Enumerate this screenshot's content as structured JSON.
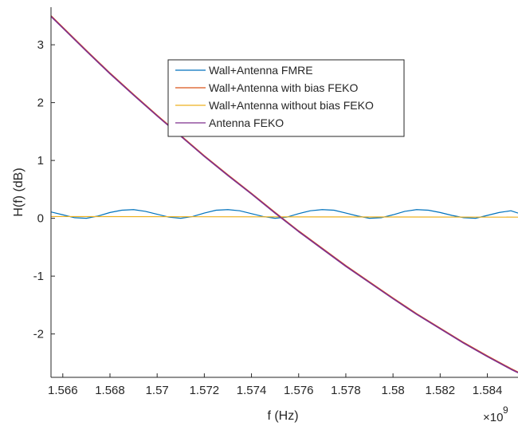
{
  "chart_data": {
    "type": "line",
    "xlabel": "f (Hz)",
    "ylabel": "H(f) (dB)",
    "x_multiplier_label": "×10",
    "x_multiplier_exp": "9",
    "xlim": [
      1.5655,
      1.5853
    ],
    "ylim": [
      -2.75,
      3.65
    ],
    "x_ticks": [
      1.566,
      1.568,
      1.57,
      1.572,
      1.574,
      1.576,
      1.578,
      1.58,
      1.582,
      1.584
    ],
    "x_tick_labels": [
      "1.566",
      "1.568",
      "1.57",
      "1.572",
      "1.574",
      "1.576",
      "1.578",
      "1.58",
      "1.582",
      "1.584"
    ],
    "y_ticks": [
      -2,
      -1,
      0,
      1,
      2,
      3
    ],
    "y_tick_labels": [
      "-2",
      "-1",
      "0",
      "1",
      "2",
      "3"
    ],
    "grid": false,
    "legend_position": "top-center",
    "series": [
      {
        "name": "Wall+Antenna FMRE",
        "color": "#0072BD",
        "x": [
          1.5655,
          1.566,
          1.5665,
          1.567,
          1.5675,
          1.568,
          1.5685,
          1.569,
          1.5695,
          1.57,
          1.5705,
          1.571,
          1.5715,
          1.572,
          1.5725,
          1.573,
          1.5735,
          1.574,
          1.5745,
          1.575,
          1.5755,
          1.576,
          1.5765,
          1.577,
          1.5775,
          1.578,
          1.5785,
          1.579,
          1.5795,
          1.58,
          1.5805,
          1.581,
          1.5815,
          1.582,
          1.5825,
          1.583,
          1.5835,
          1.584,
          1.5845,
          1.585,
          1.5853
        ],
        "y": [
          0.11,
          0.06,
          0.01,
          0.0,
          0.04,
          0.1,
          0.14,
          0.15,
          0.12,
          0.07,
          0.02,
          0.0,
          0.03,
          0.09,
          0.14,
          0.15,
          0.13,
          0.08,
          0.03,
          0.0,
          0.02,
          0.08,
          0.13,
          0.15,
          0.14,
          0.09,
          0.04,
          0.0,
          0.01,
          0.06,
          0.12,
          0.15,
          0.14,
          0.1,
          0.05,
          0.01,
          0.0,
          0.05,
          0.1,
          0.13,
          0.09
        ]
      },
      {
        "name": "Wall+Antenna with bias FEKO",
        "color": "#D95319",
        "x": [
          1.5655,
          1.566,
          1.567,
          1.568,
          1.569,
          1.57,
          1.571,
          1.572,
          1.573,
          1.574,
          1.575,
          1.576,
          1.577,
          1.578,
          1.579,
          1.58,
          1.581,
          1.582,
          1.583,
          1.584,
          1.585,
          1.5853
        ],
        "y": [
          3.5,
          3.3,
          2.9,
          2.51,
          2.14,
          1.78,
          1.43,
          1.08,
          0.75,
          0.43,
          0.1,
          -0.22,
          -0.52,
          -0.82,
          -1.1,
          -1.38,
          -1.65,
          -1.9,
          -2.15,
          -2.38,
          -2.6,
          -2.66
        ]
      },
      {
        "name": "Wall+Antenna without bias FEKO",
        "color": "#EDB120",
        "x": [
          1.5655,
          1.5853
        ],
        "y": [
          0.03,
          0.02
        ]
      },
      {
        "name": "Antenna FEKO",
        "color": "#7E2F8E",
        "x": [
          1.5655,
          1.566,
          1.567,
          1.568,
          1.569,
          1.57,
          1.571,
          1.572,
          1.573,
          1.574,
          1.575,
          1.576,
          1.577,
          1.578,
          1.579,
          1.58,
          1.581,
          1.582,
          1.583,
          1.584,
          1.585,
          1.5853
        ],
        "y": [
          3.49,
          3.29,
          2.89,
          2.5,
          2.13,
          1.77,
          1.42,
          1.07,
          0.74,
          0.42,
          0.09,
          -0.23,
          -0.53,
          -0.83,
          -1.11,
          -1.39,
          -1.66,
          -1.91,
          -2.16,
          -2.39,
          -2.61,
          -2.67
        ]
      }
    ]
  }
}
